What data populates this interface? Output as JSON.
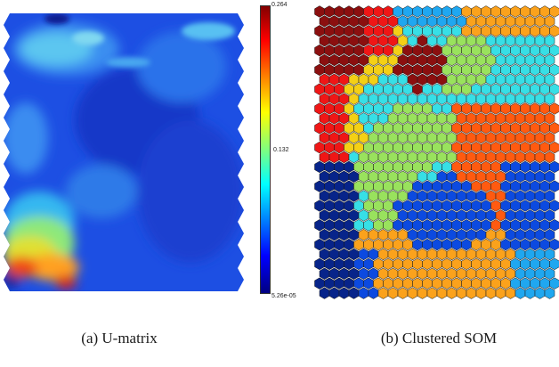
{
  "colorbar": {
    "max_label": "0.264",
    "mid_label": "0.132",
    "min_label": "5.26e-05"
  },
  "captions": {
    "left": "(a) U-matrix",
    "right": "(b) Clustered SOM"
  },
  "colors": {
    "cluster_palette": [
      "#8b0f0f",
      "#ef1616",
      "#ff5a10",
      "#fba21c",
      "#f4d016",
      "#99e25d",
      "#37dfe6",
      "#1fa7f0",
      "#0c4ae0",
      "#07248a"
    ]
  }
}
